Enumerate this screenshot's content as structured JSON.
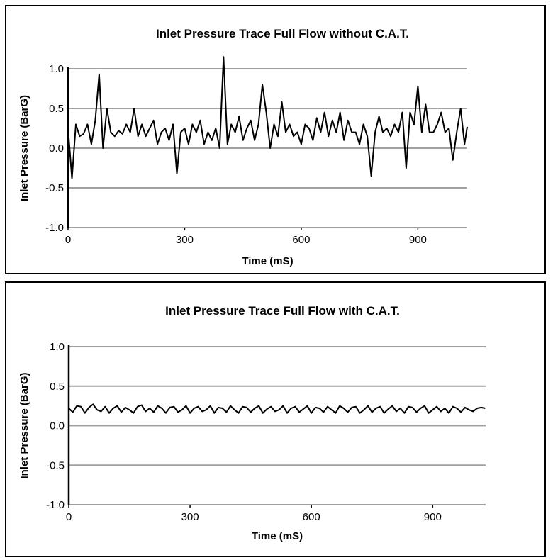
{
  "chart_data": [
    {
      "type": "line",
      "title": "Inlet Pressure Trace Full Flow without C.A.T.",
      "xlabel": "Time (mS)",
      "ylabel": "Inlet Pressure (BarG)",
      "xlim": [
        0,
        1027
      ],
      "ylim": [
        -1.0,
        1.0
      ],
      "xticks": [
        "0",
        "300",
        "600",
        "900"
      ],
      "xtick_values": [
        0,
        300,
        600,
        900
      ],
      "yticks": [
        "1.0",
        "0.5",
        "0.0",
        "-0.5",
        "-1.0"
      ],
      "ytick_values": [
        1.0,
        0.5,
        0.0,
        -0.5,
        -1.0
      ],
      "grid": "horizontal",
      "series": [
        {
          "name": "Inlet pressure",
          "x_step": 10,
          "values": [
            0.25,
            -0.38,
            0.3,
            0.15,
            0.18,
            0.3,
            0.05,
            0.35,
            0.93,
            0.0,
            0.5,
            0.2,
            0.15,
            0.22,
            0.18,
            0.3,
            0.2,
            0.5,
            0.15,
            0.3,
            0.15,
            0.25,
            0.35,
            0.05,
            0.2,
            0.25,
            0.1,
            0.3,
            -0.32,
            0.2,
            0.25,
            0.05,
            0.3,
            0.2,
            0.35,
            0.05,
            0.2,
            0.1,
            0.25,
            0.0,
            1.15,
            0.05,
            0.3,
            0.2,
            0.4,
            0.1,
            0.25,
            0.35,
            0.1,
            0.3,
            0.8,
            0.45,
            0.0,
            0.3,
            0.15,
            0.58,
            0.2,
            0.3,
            0.15,
            0.2,
            0.05,
            0.3,
            0.25,
            0.1,
            0.38,
            0.2,
            0.45,
            0.15,
            0.35,
            0.2,
            0.45,
            0.1,
            0.35,
            0.2,
            0.2,
            0.05,
            0.3,
            0.15,
            -0.35,
            0.2,
            0.4,
            0.2,
            0.25,
            0.15,
            0.3,
            0.2,
            0.45,
            -0.25,
            0.45,
            0.3,
            0.78,
            0.2,
            0.55,
            0.2,
            0.2,
            0.3,
            0.45,
            0.2,
            0.25,
            -0.15,
            0.2,
            0.5,
            0.05,
            0.27
          ]
        }
      ]
    },
    {
      "type": "line",
      "title": "Inlet Pressure Trace Full Flow with C.A.T.",
      "xlabel": "Time (mS)",
      "ylabel": "Inlet Pressure (BarG)",
      "xlim": [
        0,
        1031
      ],
      "ylim": [
        -1.0,
        1.0
      ],
      "xticks": [
        "0",
        "300",
        "600",
        "900"
      ],
      "xtick_values": [
        0,
        300,
        600,
        900
      ],
      "yticks": [
        "1.0",
        "0.5",
        "0.0",
        "-0.5",
        "-1.0"
      ],
      "ytick_values": [
        1.0,
        0.5,
        0.0,
        -0.5,
        -1.0
      ],
      "grid": "horizontal",
      "series": [
        {
          "name": "Inlet pressure",
          "x_step": 10,
          "values": [
            0.22,
            0.17,
            0.25,
            0.24,
            0.16,
            0.23,
            0.27,
            0.2,
            0.18,
            0.24,
            0.16,
            0.22,
            0.25,
            0.17,
            0.23,
            0.2,
            0.16,
            0.24,
            0.26,
            0.18,
            0.22,
            0.17,
            0.25,
            0.22,
            0.16,
            0.23,
            0.24,
            0.17,
            0.2,
            0.25,
            0.16,
            0.22,
            0.24,
            0.18,
            0.2,
            0.25,
            0.16,
            0.23,
            0.22,
            0.17,
            0.25,
            0.2,
            0.16,
            0.24,
            0.23,
            0.17,
            0.22,
            0.25,
            0.16,
            0.21,
            0.24,
            0.18,
            0.2,
            0.25,
            0.16,
            0.22,
            0.24,
            0.17,
            0.21,
            0.25,
            0.16,
            0.23,
            0.22,
            0.17,
            0.24,
            0.2,
            0.16,
            0.25,
            0.22,
            0.17,
            0.23,
            0.24,
            0.16,
            0.2,
            0.25,
            0.17,
            0.22,
            0.24,
            0.16,
            0.21,
            0.25,
            0.18,
            0.22,
            0.16,
            0.24,
            0.23,
            0.17,
            0.22,
            0.25,
            0.16,
            0.2,
            0.24,
            0.18,
            0.22,
            0.16,
            0.24,
            0.22,
            0.17,
            0.23,
            0.2,
            0.18,
            0.22,
            0.23,
            0.22
          ]
        }
      ]
    }
  ]
}
